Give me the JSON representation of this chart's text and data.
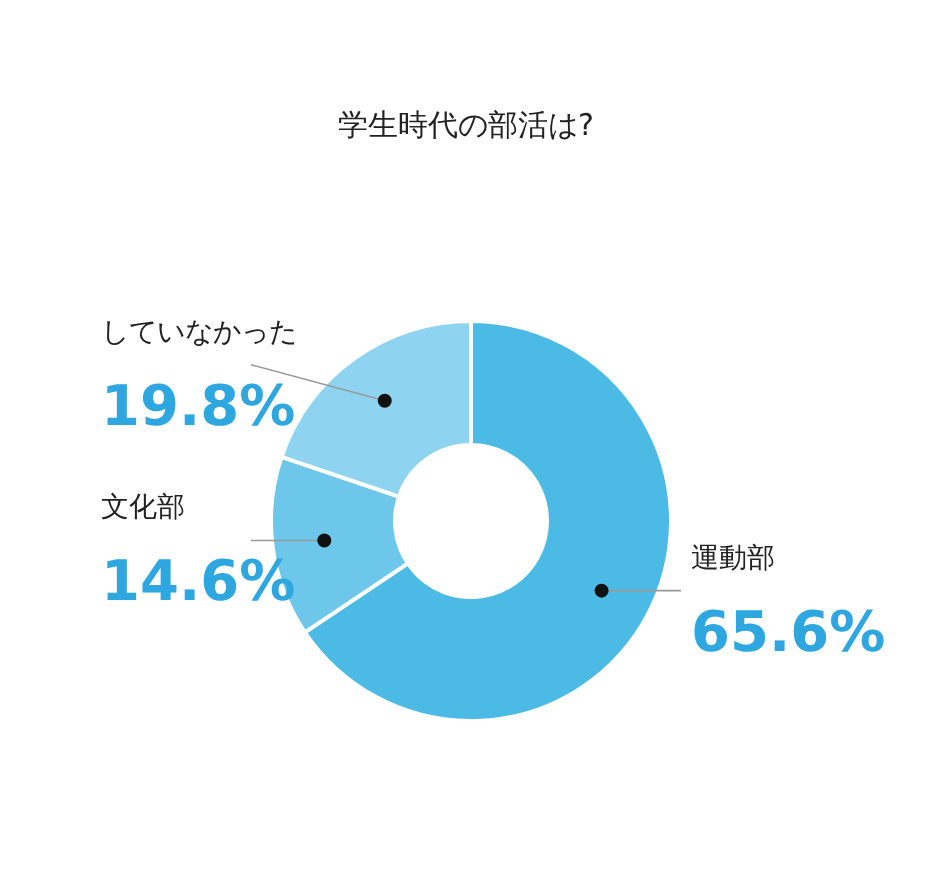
{
  "chart_data": {
    "type": "donut",
    "title": "学生時代の部活は?",
    "categories": [
      "運動部",
      "文化部",
      "していなかった"
    ],
    "values": [
      65.6,
      14.6,
      19.8
    ],
    "colors": [
      "#4bbbe5",
      "#6cc7ea",
      "#8ed4f1"
    ],
    "value_labels": [
      "65.6%",
      "14.6%",
      "19.8%"
    ]
  }
}
